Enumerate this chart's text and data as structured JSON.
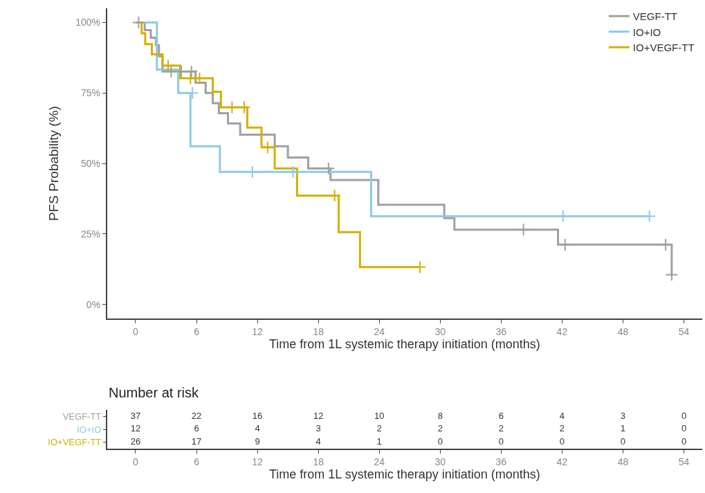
{
  "chart_data": [
    {
      "type": "step",
      "xlabel": "Time from 1L systemic therapy initiation (months)",
      "ylabel": "PFS Probability (%)",
      "xlim": [
        -2.8,
        55.8
      ],
      "ylim": [
        -5,
        105
      ],
      "xticks": [
        0,
        6,
        12,
        18,
        24,
        30,
        36,
        42,
        48,
        54
      ],
      "yticks": [
        {
          "value": 0,
          "label": "0%"
        },
        {
          "value": 25,
          "label": "25%"
        },
        {
          "value": 50,
          "label": "50%"
        },
        {
          "value": 75,
          "label": "75%"
        },
        {
          "value": 100,
          "label": "100%"
        }
      ],
      "legend": "top right",
      "line_style": "solid",
      "series": [
        {
          "name": "VEGF-TT",
          "color": "#a0a0a0",
          "x": [
            0,
            0.9,
            1.5,
            2.0,
            2.3,
            2.65,
            5.9,
            6.9,
            7.6,
            8.2,
            9.1,
            10.3,
            13.7,
            15.0,
            17.0,
            19.2,
            23.9,
            30.4,
            31.4,
            41.6,
            52.8
          ],
          "values": [
            100,
            97.3,
            94.6,
            91.9,
            88,
            82.6,
            78.6,
            75,
            71.4,
            67.8,
            64.2,
            60.2,
            56.1,
            52.1,
            48.2,
            44.1,
            35.3,
            30.6,
            26.5,
            21.2,
            10.5
          ]
        },
        {
          "name": "IO+IO",
          "color": "#8ecae6",
          "x": [
            0,
            2.1,
            4.2,
            5.4,
            8.3,
            23.2,
            50.6
          ],
          "values": [
            100,
            83.3,
            75,
            56.1,
            47,
            31.3,
            31.3
          ]
        },
        {
          "name": "IO+VEGF-TT",
          "color": "#d4b000",
          "x": [
            0,
            0.6,
            0.95,
            1.6,
            2.65,
            4.4,
            7.6,
            8.4,
            11.0,
            12.4,
            13.7,
            15.9,
            20.0,
            22.1,
            28.0
          ],
          "values": [
            100,
            96.2,
            92.3,
            88.7,
            84.7,
            80.2,
            75.4,
            69.9,
            62.7,
            55.7,
            48.2,
            38.6,
            25.6,
            13.2,
            13.2
          ]
        },
        {
          "type": "scatter",
          "marker": "cross",
          "color": "#a0a0a0",
          "x": [
            0.3,
            3.5,
            4.5,
            5.5,
            19.0,
            38.2,
            42.3,
            52.2,
            52.8
          ],
          "values": [
            100,
            82.6,
            82.6,
            82.6,
            48.2,
            26.5,
            21.2,
            21.2,
            10.5
          ]
        },
        {
          "type": "scatter",
          "marker": "cross",
          "color": "#8ecae6",
          "x": [
            5.6,
            11.5,
            15.5,
            42.1,
            50.6
          ],
          "values": [
            75,
            47,
            47,
            31.3,
            31.3
          ]
        },
        {
          "type": "scatter",
          "marker": "cross",
          "color": "#d4b000",
          "x": [
            3.2,
            5.4,
            6.3,
            9.5,
            10.7,
            13.0,
            19.6,
            28.0
          ],
          "values": [
            84.7,
            80.2,
            80.2,
            69.9,
            69.9,
            55.7,
            38.6,
            13.2
          ]
        }
      ]
    },
    {
      "type": "heatmap",
      "title": "Number at risk",
      "xlabel": "Time from 1L systemic therapy initiation (months)",
      "categories": [
        "0",
        "6",
        "12",
        "18",
        "24",
        "30",
        "36",
        "42",
        "48",
        "54"
      ],
      "y_categories": [
        "VEGF-TT",
        "IO+IO",
        "IO+VEGF-TT"
      ],
      "cells": [
        [
          37,
          22,
          16,
          12,
          10,
          8,
          6,
          4,
          3,
          0
        ],
        [
          12,
          6,
          4,
          3,
          2,
          2,
          2,
          2,
          1,
          0
        ],
        [
          26,
          17,
          9,
          4,
          1,
          0,
          0,
          0,
          0,
          0
        ]
      ],
      "data_labels": true
    }
  ]
}
